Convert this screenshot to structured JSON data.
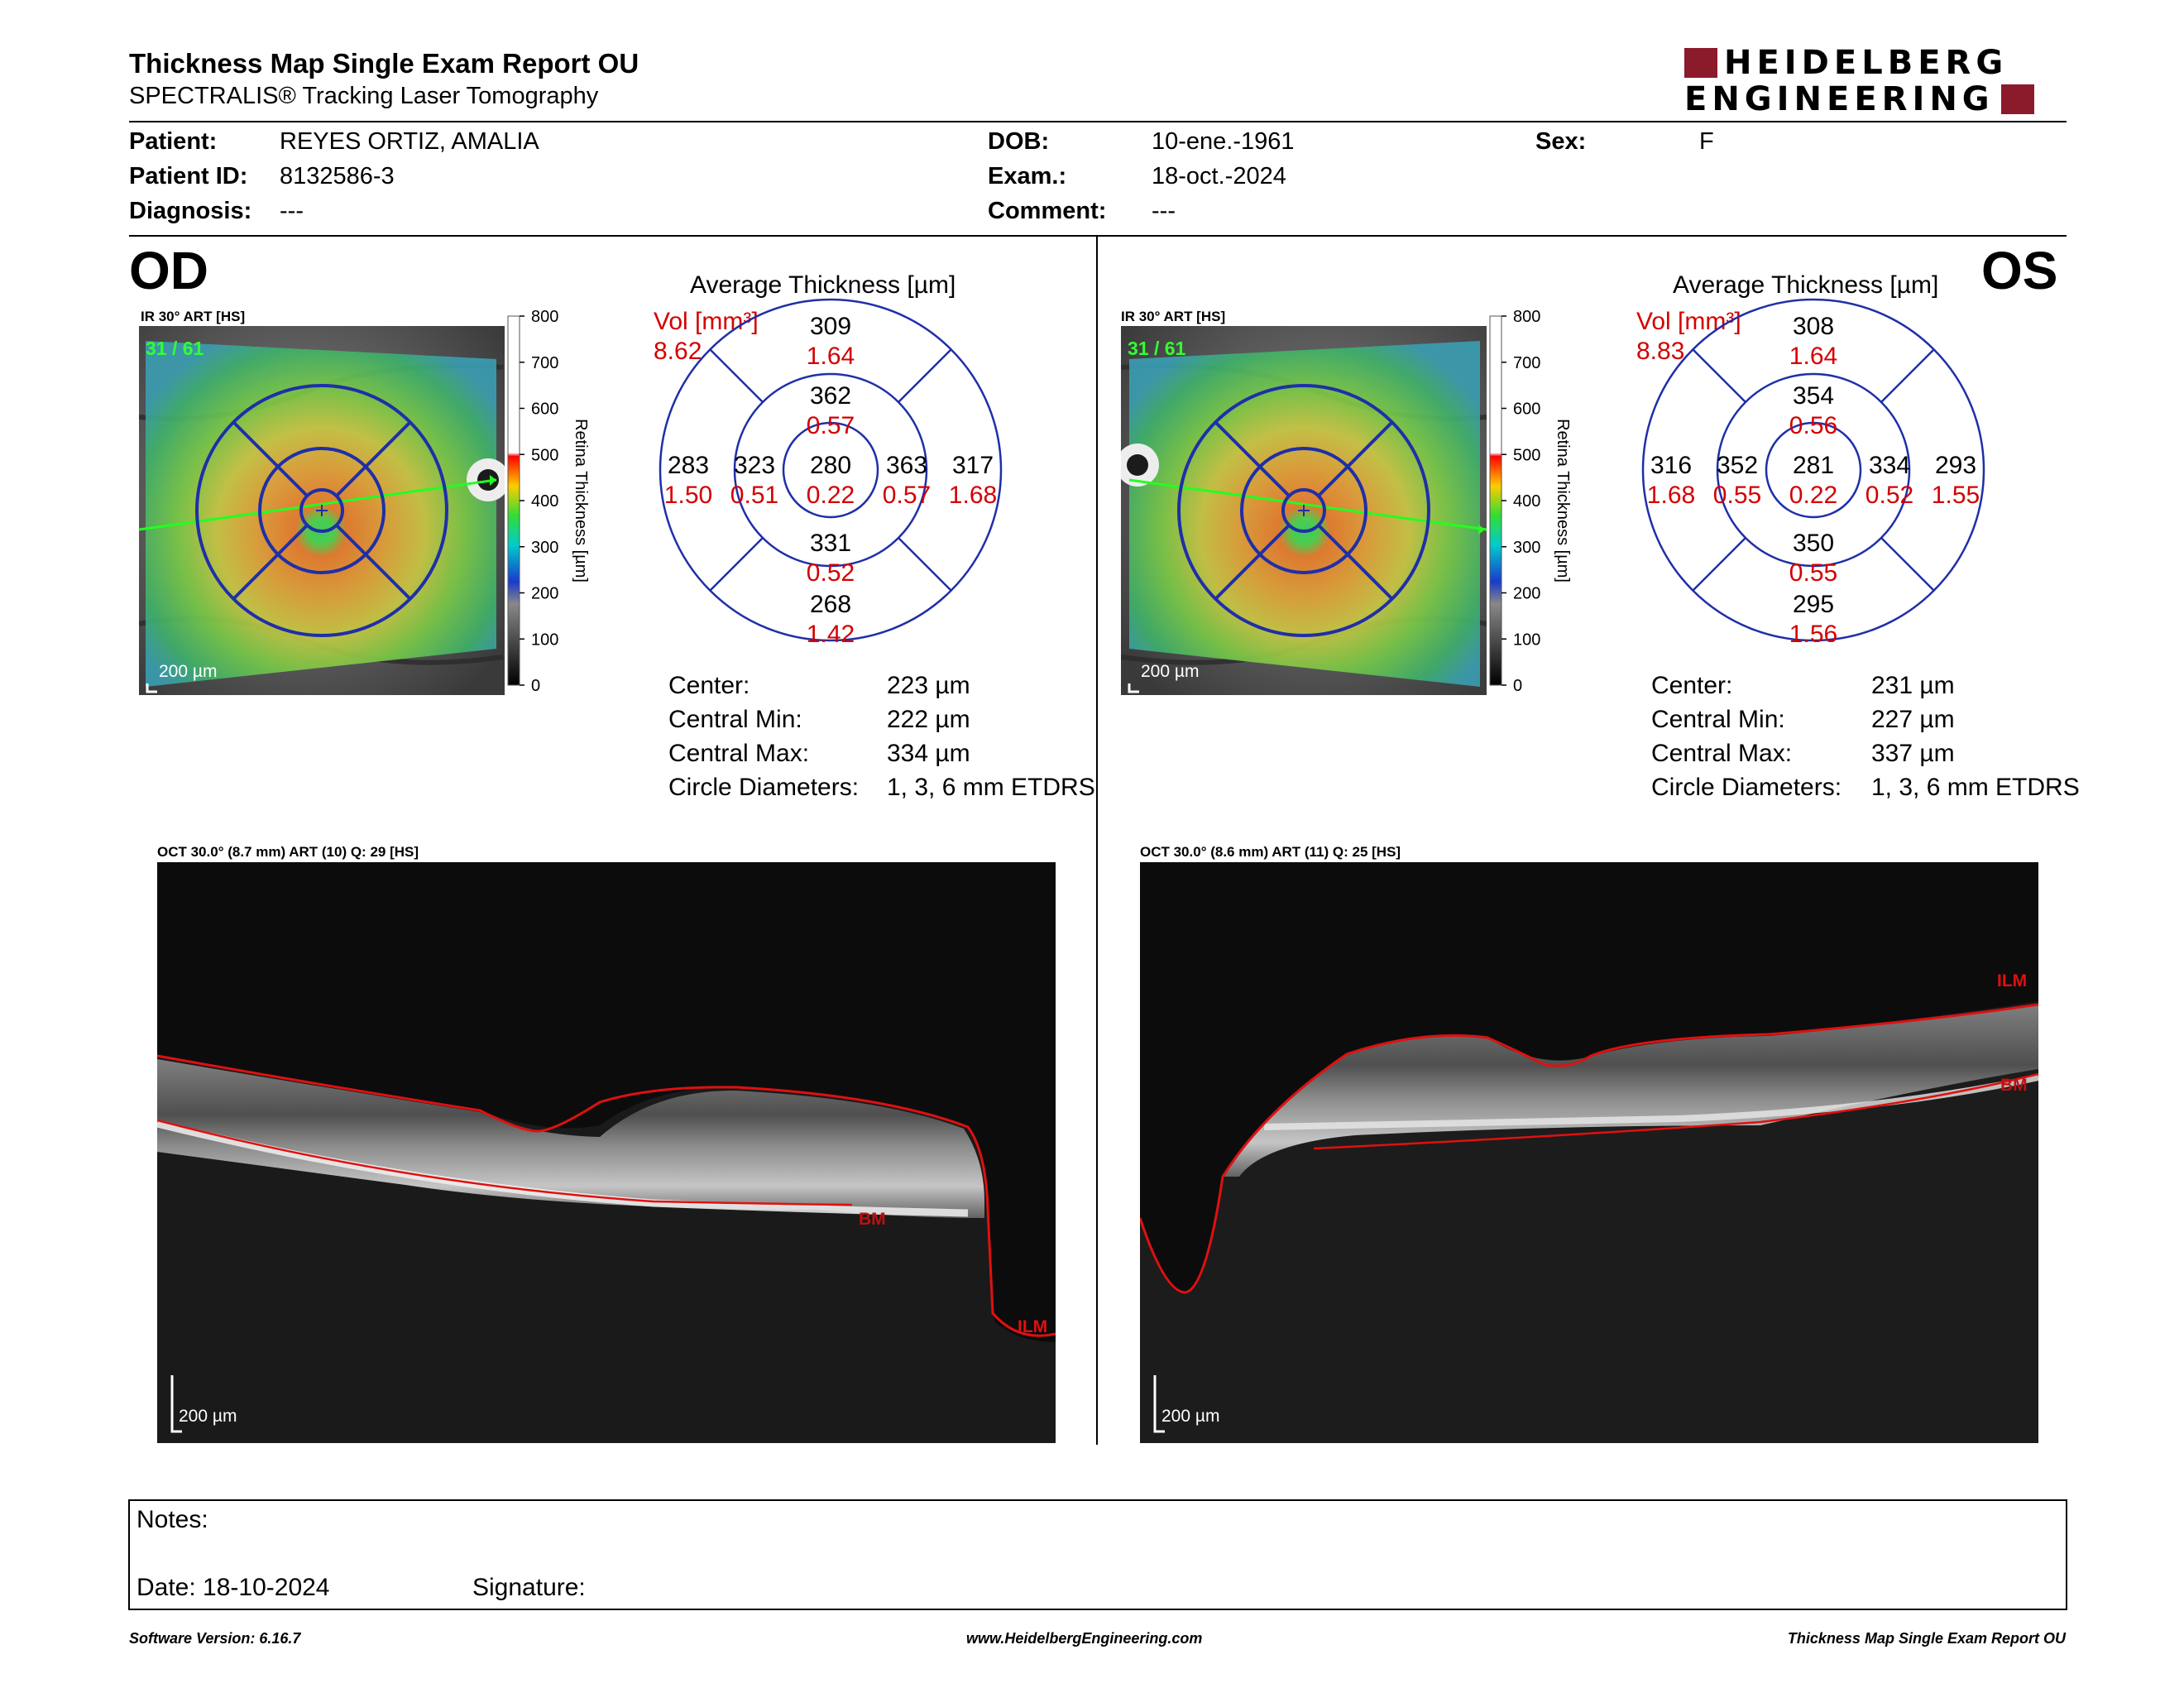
{
  "header": {
    "title": "Thickness Map Single Exam Report OU",
    "subtitle": "SPECTRALIS® Tracking Laser Tomography",
    "logo_line1": "HEIDELBERG",
    "logo_line2": "ENGINEERING"
  },
  "patient": {
    "patient_label": "Patient:",
    "patient_value": "REYES ORTIZ, AMALIA",
    "id_label": "Patient ID:",
    "id_value": "8132586-3",
    "diagnosis_label": "Diagnosis:",
    "diagnosis_value": "---",
    "dob_label": "DOB:",
    "dob_value": "10-ene.-1961",
    "exam_label": "Exam.:",
    "exam_value": "18-oct.-2024",
    "comment_label": "Comment:",
    "comment_value": "---",
    "sex_label": "Sex:",
    "sex_value": "F"
  },
  "colorbar": {
    "ticks": [
      "800",
      "700",
      "600",
      "500",
      "400",
      "300",
      "200",
      "100",
      "0"
    ],
    "axis_label": "Retina Thickness [µm]"
  },
  "od": {
    "eye": "OD",
    "ir_label": "IR 30° ART [HS]",
    "frame_count": "31 / 61",
    "scale": "200 µm",
    "avg_title": "Average Thickness [µm]",
    "vol_label": "Vol [mm³]",
    "vol_value": "8.62",
    "sectors": {
      "center": {
        "t": "280",
        "v": "0.22"
      },
      "inner_top": {
        "t": "362",
        "v": "0.57"
      },
      "inner_bottom": {
        "t": "331",
        "v": "0.52"
      },
      "inner_left": {
        "t": "323",
        "v": "0.51"
      },
      "inner_right": {
        "t": "363",
        "v": "0.57"
      },
      "outer_top": {
        "t": "309",
        "v": "1.64"
      },
      "outer_bottom": {
        "t": "268",
        "v": "1.42"
      },
      "outer_left": {
        "t": "283",
        "v": "1.50"
      },
      "outer_right": {
        "t": "317",
        "v": "1.68"
      }
    },
    "stats": {
      "center_label": "Center:",
      "center_value": "223 µm",
      "min_label": "Central Min:",
      "min_value": "222 µm",
      "max_label": "Central Max:",
      "max_value": "334 µm",
      "diam_label": "Circle Diameters:",
      "diam_value": "1, 3, 6 mm ETDRS"
    },
    "oct_label": "OCT 30.0° (8.7 mm) ART (10) Q: 29 [HS]",
    "oct_scale": "200 µm",
    "bm_label": "BM",
    "ilm_label": "ILM"
  },
  "os": {
    "eye": "OS",
    "ir_label": "IR 30° ART [HS]",
    "frame_count": "31 / 61",
    "scale": "200 µm",
    "avg_title": "Average Thickness [µm]",
    "vol_label": "Vol [mm³]",
    "vol_value": "8.83",
    "sectors": {
      "center": {
        "t": "281",
        "v": "0.22"
      },
      "inner_top": {
        "t": "354",
        "v": "0.56"
      },
      "inner_bottom": {
        "t": "350",
        "v": "0.55"
      },
      "inner_left": {
        "t": "352",
        "v": "0.55"
      },
      "inner_right": {
        "t": "334",
        "v": "0.52"
      },
      "outer_top": {
        "t": "308",
        "v": "1.64"
      },
      "outer_bottom": {
        "t": "295",
        "v": "1.56"
      },
      "outer_left": {
        "t": "316",
        "v": "1.68"
      },
      "outer_right": {
        "t": "293",
        "v": "1.55"
      }
    },
    "stats": {
      "center_label": "Center:",
      "center_value": "231 µm",
      "min_label": "Central Min:",
      "min_value": "227 µm",
      "max_label": "Central Max:",
      "max_value": "337 µm",
      "diam_label": "Circle Diameters:",
      "diam_value": "1, 3, 6 mm ETDRS"
    },
    "oct_label": "OCT 30.0° (8.6 mm) ART (11) Q: 25 [HS]",
    "oct_scale": "200 µm",
    "bm_label": "BM",
    "ilm_label": "ILM"
  },
  "notes": {
    "notes_label": "Notes:",
    "date_label": "Date: 18-10-2024",
    "signature_label": "Signature:"
  },
  "footer": {
    "software": "Software Version: 6.16.7",
    "website": "www.HeidelbergEngineering.com",
    "report": "Thickness Map Single Exam Report OU"
  },
  "colors": {
    "accent_red": "#d40000",
    "grid_blue": "#1f2fa8",
    "logo_red": "#8b1a2b",
    "green_overlay": "#33ff33"
  }
}
